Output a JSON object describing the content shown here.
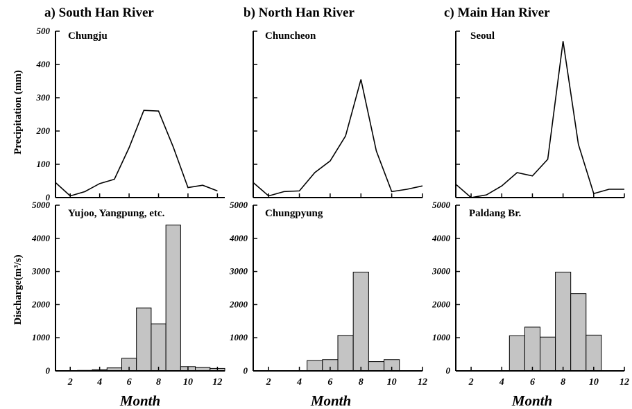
{
  "chart_data": [
    {
      "type": "line",
      "title": "a) South Han River",
      "site": "Chungju",
      "ylabel": "Precipitation (mm)",
      "xlabel": "",
      "x": [
        1,
        2,
        3,
        4,
        5,
        6,
        7,
        8,
        9,
        10,
        11,
        12
      ],
      "values": [
        45,
        5,
        18,
        42,
        55,
        150,
        262,
        260,
        152,
        30,
        37,
        20
      ],
      "xlim": [
        1,
        12.5
      ],
      "ylim": [
        0,
        500
      ],
      "yticks": [
        0,
        100,
        200,
        300,
        400,
        500
      ],
      "xticks": [
        2,
        4,
        6,
        8,
        10,
        12
      ]
    },
    {
      "type": "bar",
      "site": "Yujoo, Yangpung, etc.",
      "ylabel": "Discharge(m³/s)",
      "xlabel": "Month",
      "x": [
        1,
        2,
        3,
        4,
        5,
        6,
        7,
        8,
        9,
        10,
        11,
        12
      ],
      "values": [
        5,
        5,
        15,
        35,
        90,
        380,
        1900,
        1420,
        4400,
        130,
        100,
        75
      ],
      "xlim": [
        1,
        12.5
      ],
      "ylim": [
        0,
        5000
      ],
      "yticks": [
        0,
        1000,
        2000,
        3000,
        4000,
        5000
      ],
      "xticks": [
        2,
        4,
        6,
        8,
        10,
        12
      ]
    },
    {
      "type": "line",
      "title": "b) North Han River",
      "site": "Chuncheon",
      "ylabel": "",
      "xlabel": "",
      "x": [
        1,
        2,
        3,
        4,
        5,
        6,
        7,
        8,
        9,
        10,
        11,
        12
      ],
      "values": [
        45,
        5,
        18,
        20,
        75,
        110,
        185,
        355,
        140,
        18,
        25,
        35
      ],
      "xlim": [
        1,
        12
      ],
      "ylim": [
        0,
        500
      ],
      "yticks": [
        0,
        100,
        200,
        300,
        400,
        500
      ],
      "xticks": [
        2,
        4,
        6,
        8,
        10,
        12
      ]
    },
    {
      "type": "bar",
      "site": "Chungpyung",
      "ylabel": "",
      "xlabel": "Month",
      "x": [
        1,
        2,
        3,
        4,
        5,
        6,
        7,
        8,
        9,
        10
      ],
      "values": [
        0,
        0,
        0,
        0,
        310,
        340,
        1070,
        2980,
        280,
        340
      ],
      "xlim": [
        1,
        12
      ],
      "ylim": [
        0,
        5000
      ],
      "yticks": [
        0,
        1000,
        2000,
        3000,
        4000,
        5000
      ],
      "xticks": [
        2,
        4,
        6,
        8,
        10,
        12
      ]
    },
    {
      "type": "line",
      "title": "c) Main Han River",
      "site": "Seoul",
      "ylabel": "",
      "xlabel": "",
      "x": [
        1,
        2,
        3,
        4,
        5,
        6,
        7,
        8,
        9,
        10,
        11,
        12
      ],
      "values": [
        40,
        0,
        8,
        35,
        75,
        65,
        115,
        470,
        160,
        12,
        25,
        25
      ],
      "xlim": [
        1,
        12
      ],
      "ylim": [
        0,
        500
      ],
      "yticks": [
        0,
        100,
        200,
        300,
        400,
        500
      ],
      "xticks": [
        2,
        4,
        6,
        8,
        10,
        12
      ]
    },
    {
      "type": "bar",
      "site": "Paldang Br.",
      "ylabel": "",
      "xlabel": "Month",
      "x": [
        1,
        2,
        3,
        4,
        5,
        6,
        7,
        8,
        9,
        10
      ],
      "values": [
        0,
        0,
        0,
        0,
        1060,
        1320,
        1020,
        2980,
        2330,
        1080
      ],
      "xlim": [
        1,
        12
      ],
      "ylim": [
        0,
        5000
      ],
      "yticks": [
        0,
        1000,
        2000,
        3000,
        4000,
        5000
      ],
      "xticks": [
        2,
        4,
        6,
        8,
        10,
        12
      ]
    }
  ]
}
